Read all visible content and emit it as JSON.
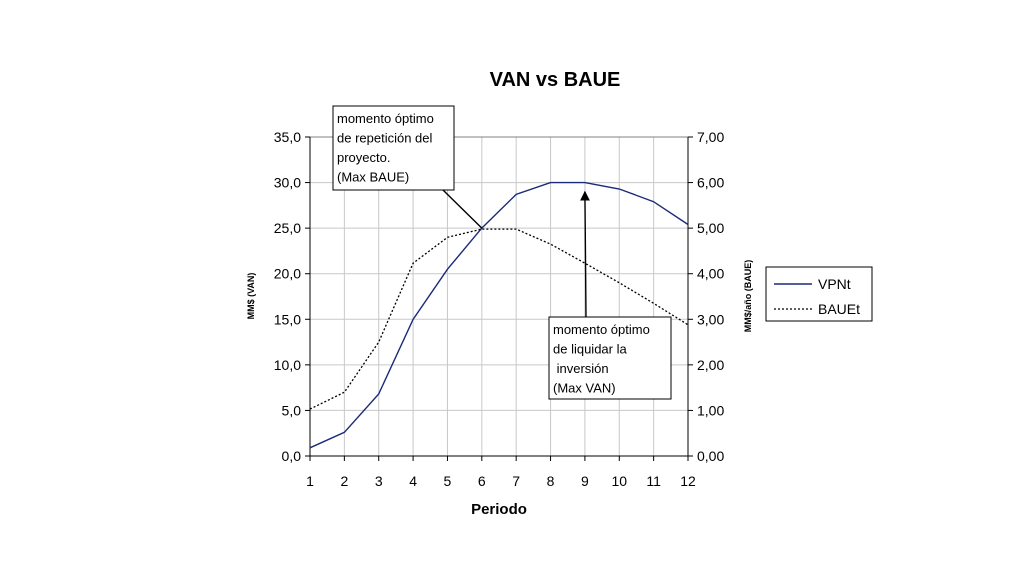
{
  "chart_data": {
    "type": "line",
    "title": "VAN vs BAUE",
    "xlabel": "Periodo",
    "ylabel_left": "MM$ (VAN)",
    "ylabel_right": "MM$/año (BAUE)",
    "x": [
      1,
      2,
      3,
      4,
      5,
      6,
      7,
      8,
      9,
      10,
      11,
      12
    ],
    "x_tick_labels": [
      "1",
      "2",
      "3",
      "4",
      "5",
      "6",
      "7",
      "8",
      "9",
      "10",
      "11",
      "12"
    ],
    "ylim_left": [
      0,
      35
    ],
    "ylim_right": [
      0,
      7
    ],
    "y_tick_labels_left": [
      "0,0",
      "5,0",
      "10,0",
      "15,0",
      "20,0",
      "25,0",
      "30,0",
      "35,0"
    ],
    "y_tick_labels_right": [
      "0,00",
      "1,00",
      "2,00",
      "3,00",
      "4,00",
      "5,00",
      "6,00",
      "7,00"
    ],
    "grid": true,
    "legend_position": "right",
    "series": [
      {
        "name": "VPNt",
        "axis": "left",
        "style": "solid",
        "color": "#1a2a7a",
        "values": [
          0.9,
          2.6,
          6.8,
          15.0,
          20.5,
          25.0,
          28.7,
          30.0,
          30.0,
          29.3,
          27.9,
          25.4
        ]
      },
      {
        "name": "BAUEt",
        "axis": "right",
        "style": "dotted",
        "color": "#000000",
        "values": [
          1.03,
          1.4,
          2.5,
          4.23,
          4.8,
          4.98,
          4.98,
          4.65,
          4.23,
          3.8,
          3.35,
          2.88
        ]
      }
    ],
    "annotations": [
      {
        "lines": [
          "momento óptimo",
          "de repetición del",
          "proyecto.",
          "(Max BAUE)"
        ],
        "x": 6,
        "y_left": 25.0,
        "axis": "left"
      },
      {
        "lines": [
          "momento óptimo",
          "de liquidar la",
          " inversión",
          "(Max VAN)"
        ],
        "x": 9,
        "y_left": 29.0,
        "axis": "left"
      }
    ]
  }
}
